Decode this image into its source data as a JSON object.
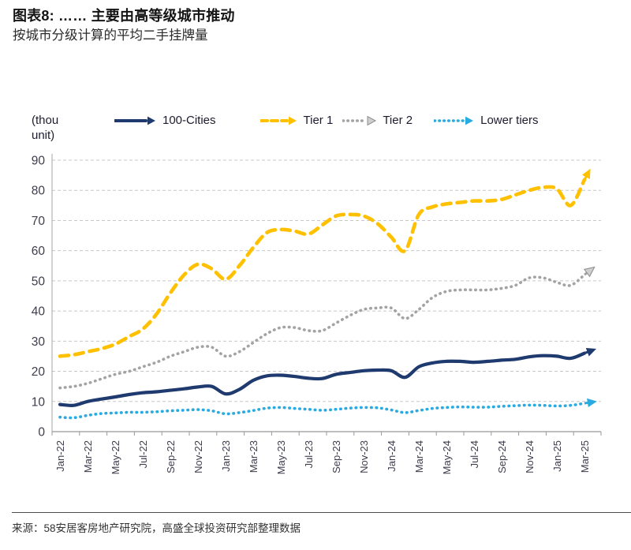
{
  "header": {
    "figure_title": "图表8: …… 主要由高等级城市推动",
    "subtitle": "按城市分级计算的平均二手挂牌量"
  },
  "chart_data": {
    "type": "line",
    "unit_label": "(thou unit)",
    "title": "按城市分级计算的平均二手挂牌量",
    "xlabel": "",
    "ylabel": "thou unit",
    "ylim": [
      0,
      90
    ],
    "ytick_step": 10,
    "grid": "horizontal-dashed",
    "legend_position": "top",
    "x_tick_every": 2,
    "x": [
      "Jan-22",
      "Feb-22",
      "Mar-22",
      "Apr-22",
      "May-22",
      "Jun-22",
      "Jul-22",
      "Aug-22",
      "Sep-22",
      "Oct-22",
      "Nov-22",
      "Dec-22",
      "Jan-23",
      "Feb-23",
      "Mar-23",
      "Apr-23",
      "May-23",
      "Jun-23",
      "Jul-23",
      "Aug-23",
      "Sep-23",
      "Oct-23",
      "Nov-23",
      "Dec-23",
      "Jan-24",
      "Feb-24",
      "Mar-24",
      "Apr-24",
      "May-24",
      "Jun-24",
      "Jul-24",
      "Aug-24",
      "Sep-24",
      "Oct-24",
      "Nov-24",
      "Dec-24",
      "Jan-25",
      "Feb-25",
      "Mar-25"
    ],
    "series": [
      {
        "name": "100-Cities",
        "color": "#1f3a6e",
        "style": "solid",
        "arrow": "filled",
        "values": [
          9,
          8.7,
          10,
          10.8,
          11.5,
          12.3,
          12.9,
          13.2,
          13.7,
          14.2,
          14.8,
          15,
          12.5,
          14,
          17,
          18.5,
          18.7,
          18.3,
          17.7,
          17.6,
          19,
          19.6,
          20.2,
          20.4,
          20.2,
          18,
          21.5,
          22.8,
          23.3,
          23.3,
          23,
          23.3,
          23.7,
          24,
          24.8,
          25.2,
          25,
          24.3,
          26
        ]
      },
      {
        "name": "Tier 1",
        "color": "#ffc000",
        "style": "dashed",
        "arrow": "filled",
        "values": [
          25,
          25.5,
          26.5,
          27.5,
          29,
          31.5,
          34,
          39,
          46,
          52,
          55.5,
          54,
          50.5,
          55,
          61,
          66,
          67,
          66.5,
          65.5,
          68.5,
          71.5,
          72,
          71.5,
          69,
          64.5,
          60,
          72,
          74.5,
          75.5,
          76,
          76.5,
          76.5,
          77,
          78.5,
          80,
          81,
          80.5,
          75,
          83.5
        ]
      },
      {
        "name": "Tier 2",
        "color": "#a3a3a3",
        "style": "dotted",
        "arrow": "open",
        "values": [
          14.5,
          15,
          16,
          17.5,
          19,
          20,
          21.5,
          23,
          25,
          26.5,
          28,
          28,
          25,
          26.5,
          29.5,
          32.5,
          34.5,
          34.5,
          33.5,
          33.5,
          36,
          38.5,
          40.5,
          41,
          41,
          37.5,
          40.5,
          44.5,
          46.5,
          47,
          47,
          47,
          47.5,
          48.5,
          51,
          51,
          49.5,
          48.5,
          52
        ]
      },
      {
        "name": "Lower tiers",
        "color": "#29abe2",
        "style": "dotted",
        "arrow": "filled",
        "values": [
          4.8,
          4.6,
          5.4,
          6,
          6.2,
          6.4,
          6.4,
          6.6,
          6.9,
          7.1,
          7.3,
          6.9,
          5.9,
          6.3,
          7,
          7.8,
          8,
          7.7,
          7.4,
          7.1,
          7.4,
          7.8,
          8,
          7.9,
          7.2,
          6.3,
          7,
          7.7,
          8,
          8.2,
          8.1,
          8.1,
          8.4,
          8.6,
          8.8,
          8.7,
          8.5,
          8.7,
          9.4
        ]
      }
    ],
    "axis_colors": {
      "grid": "#c7c7c7",
      "y_axis": "#b5b5b5",
      "x_axis": "#999999",
      "tick_text": "#3d3d4d"
    }
  },
  "footer": {
    "source": "来源：58安居客房地产研究院，高盛全球投资研究部整理数据"
  }
}
